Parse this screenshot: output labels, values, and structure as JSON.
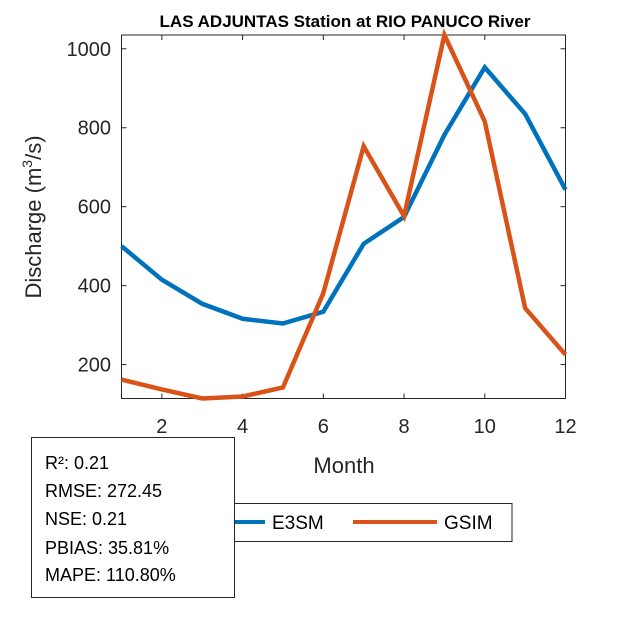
{
  "chart_data": {
    "type": "line",
    "title": "LAS ADJUNTAS  Station at  RIO PANUCO  River",
    "xlabel": "Month",
    "ylabel_main": "Discharge (m",
    "ylabel_sup": "3",
    "ylabel_tail": "/s)",
    "x": [
      1,
      2,
      3,
      4,
      5,
      6,
      7,
      8,
      9,
      10,
      11,
      12
    ],
    "xlim": [
      1,
      12
    ],
    "ylim": [
      114,
      1035
    ],
    "xticks": [
      2,
      4,
      6,
      8,
      10,
      12
    ],
    "yticks": [
      200,
      400,
      600,
      800,
      1000
    ],
    "grid": false,
    "series": [
      {
        "name": "E3SM",
        "color": "#0072BD",
        "values": [
          500,
          415,
          354,
          316,
          304,
          334,
          506,
          574,
          782,
          953,
          835,
          643
        ]
      },
      {
        "name": "GSIM",
        "color": "#D95319",
        "values": [
          162,
          137,
          114,
          119,
          142,
          381,
          753,
          576,
          1035,
          816,
          343,
          225
        ]
      }
    ],
    "legend_placement": "bottom"
  },
  "stats": [
    "R²: 0.21",
    "RMSE: 272.45",
    "NSE: 0.21",
    "PBIAS: 35.81%",
    "MAPE: 110.80%"
  ]
}
